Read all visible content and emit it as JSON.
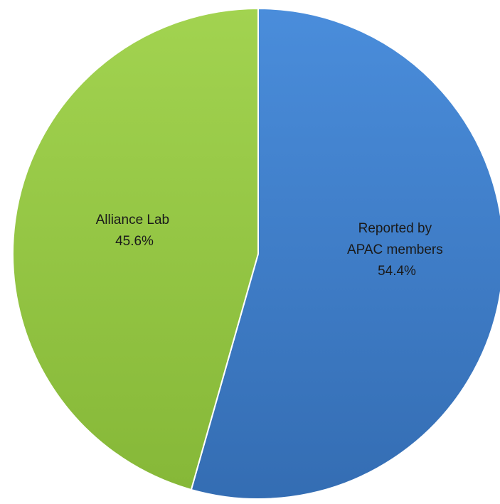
{
  "chart_data": {
    "type": "pie",
    "title": "",
    "slices": [
      {
        "label_lines": [
          "Reported by",
          "APAC members"
        ],
        "value_label": "54.4%",
        "value": 54.4,
        "color": "#3E7FCF"
      },
      {
        "label_lines": [
          "Alliance Lab"
        ],
        "value_label": "45.6%",
        "value": 45.6,
        "color": "#92C740"
      }
    ],
    "legend": "none",
    "start_angle": "12 o'clock",
    "direction": "clockwise"
  }
}
